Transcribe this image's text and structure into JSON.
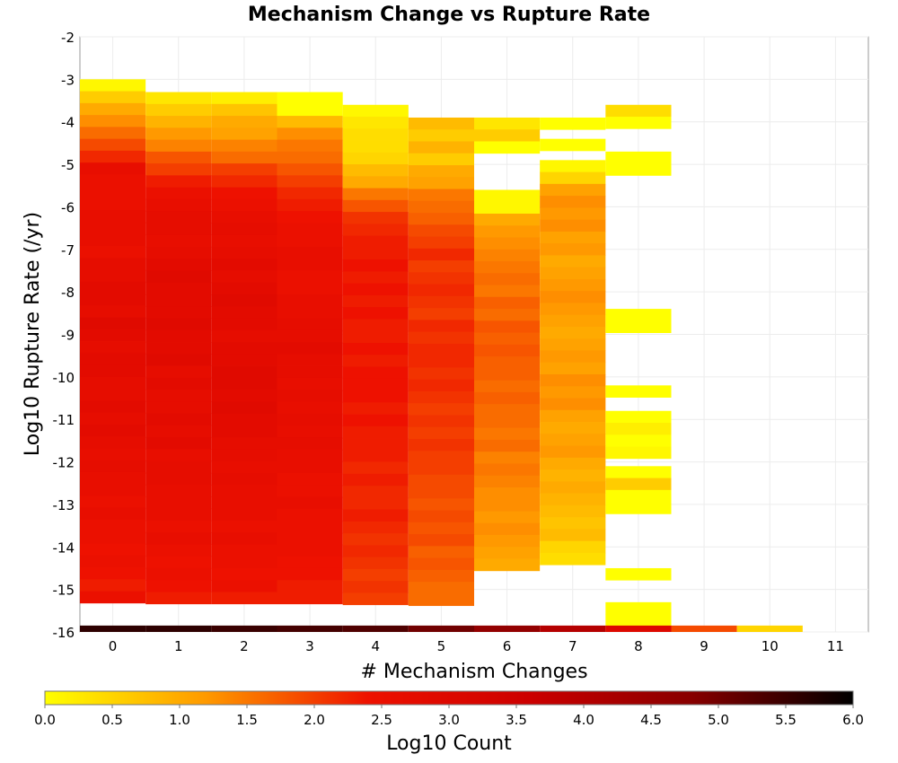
{
  "chart_data": {
    "type": "heatmap",
    "title": "Mechanism Change vs Rupture Rate",
    "xlabel": "# Mechanism Changes",
    "ylabel": "Log10 Rupture Rate (/yr)",
    "xlim": [
      -0.5,
      11.5
    ],
    "ylim": [
      -16,
      -2
    ],
    "x_ticks": [
      "0",
      "1",
      "2",
      "3",
      "4",
      "5",
      "6",
      "7",
      "8",
      "9",
      "10",
      "11"
    ],
    "y_ticks": [
      "-2",
      "-3",
      "-4",
      "-5",
      "-6",
      "-7",
      "-8",
      "-9",
      "-10",
      "-11",
      "-12",
      "-13",
      "-14",
      "-15",
      "-16"
    ],
    "grid": true,
    "bin_height": 0.28,
    "colorbar": {
      "label": "Log10 Count",
      "range": [
        0,
        6
      ],
      "ticks": [
        "0.0",
        "0.5",
        "1.0",
        "1.5",
        "2.0",
        "2.5",
        "3.0",
        "3.5",
        "4.0",
        "4.5",
        "5.0",
        "5.5",
        "6.0"
      ],
      "colors": [
        "#ffff00",
        "#ff9900",
        "#ee1100",
        "#cc0000",
        "#880000",
        "#000000"
      ]
    },
    "columns": [
      {
        "x": 0,
        "y_start": -3.0,
        "values": [
          0.1,
          0.6,
          1.0,
          1.3,
          1.6,
          1.9,
          2.2,
          2.6,
          2.5,
          2.5,
          2.5,
          2.6,
          2.6,
          2.6,
          2.5,
          2.7,
          2.7,
          2.8,
          2.8,
          2.7,
          2.9,
          2.8,
          2.7,
          2.8,
          2.8,
          2.7,
          2.7,
          2.8,
          2.7,
          2.8,
          2.7,
          2.6,
          2.7,
          2.6,
          2.6,
          2.5,
          2.6,
          2.5,
          2.5,
          2.4,
          2.5,
          2.4,
          2.3,
          2.5
        ]
      },
      {
        "x": 1,
        "y_start": -3.3,
        "values": [
          0.3,
          0.6,
          0.9,
          1.2,
          1.4,
          1.8,
          2.0,
          2.3,
          2.5,
          2.6,
          2.7,
          2.7,
          2.6,
          2.7,
          2.8,
          2.9,
          2.8,
          2.8,
          2.8,
          2.9,
          2.8,
          2.8,
          2.9,
          2.7,
          2.8,
          2.7,
          2.7,
          2.8,
          2.7,
          2.8,
          2.6,
          2.7,
          2.7,
          2.6,
          2.6,
          2.6,
          2.5,
          2.6,
          2.5,
          2.4,
          2.5,
          2.4,
          2.3
        ]
      },
      {
        "x": 2,
        "y_start": -3.3,
        "values": [
          0.2,
          0.7,
          1.0,
          1.1,
          1.4,
          1.6,
          2.0,
          2.2,
          2.4,
          2.5,
          2.6,
          2.7,
          2.6,
          2.7,
          2.8,
          2.7,
          2.8,
          2.9,
          2.8,
          2.8,
          2.7,
          2.8,
          2.8,
          2.9,
          2.9,
          2.8,
          2.9,
          2.8,
          2.8,
          2.7,
          2.7,
          2.6,
          2.7,
          2.6,
          2.6,
          2.6,
          2.5,
          2.6,
          2.5,
          2.5,
          2.4,
          2.5,
          2.3
        ]
      },
      {
        "x": 3,
        "y_start": -3.3,
        "values": [
          0.0,
          0.0,
          0.8,
          1.3,
          1.5,
          1.6,
          1.8,
          2.0,
          2.2,
          2.3,
          2.4,
          2.5,
          2.5,
          2.6,
          2.6,
          2.5,
          2.5,
          2.6,
          2.6,
          2.7,
          2.7,
          2.8,
          2.7,
          2.7,
          2.6,
          2.7,
          2.6,
          2.7,
          2.6,
          2.7,
          2.6,
          2.6,
          2.5,
          2.5,
          2.6,
          2.5,
          2.5,
          2.5,
          2.5,
          2.4,
          2.4,
          2.3,
          2.3
        ]
      },
      {
        "x": 4,
        "y_start": -3.6,
        "values": [
          0.1,
          0.3,
          0.4,
          0.4,
          0.5,
          0.8,
          1.0,
          1.5,
          1.8,
          2.1,
          2.2,
          2.3,
          2.3,
          2.4,
          2.3,
          2.4,
          2.3,
          2.4,
          2.3,
          2.3,
          2.4,
          2.3,
          2.4,
          2.4,
          2.4,
          2.3,
          2.4,
          2.3,
          2.3,
          2.3,
          2.2,
          2.3,
          2.2,
          2.2,
          2.3,
          2.2,
          2.1,
          2.2,
          2.1,
          2.0,
          2.1,
          2.0
        ]
      },
      {
        "x": 5,
        "y_start": -3.9,
        "values": [
          0.8,
          0.6,
          0.9,
          0.6,
          1.0,
          1.1,
          1.5,
          1.6,
          1.7,
          1.9,
          2.0,
          2.2,
          2.0,
          2.1,
          2.2,
          2.1,
          2.0,
          2.2,
          2.1,
          2.2,
          2.2,
          2.1,
          2.2,
          2.1,
          2.0,
          2.1,
          2.0,
          2.1,
          2.0,
          2.0,
          1.9,
          1.9,
          1.8,
          1.9,
          1.8,
          1.9,
          1.7,
          1.8,
          1.7,
          1.6,
          1.6
        ]
      },
      {
        "x": 6,
        "y_start": -5.6,
        "values": [
          0.1,
          0.1,
          1.0,
          1.2,
          1.3,
          1.4,
          1.5,
          1.6,
          1.5,
          1.7,
          1.6,
          1.8,
          1.7,
          1.8,
          1.7,
          1.7,
          1.6,
          1.7,
          1.6,
          1.6,
          1.5,
          1.6,
          1.4,
          1.5,
          1.4,
          1.3,
          1.3,
          1.2,
          1.3,
          1.2,
          1.1,
          1.0
        ]
      },
      {
        "x": 6,
        "y_start": -3.9,
        "values": [
          0.3,
          0.6,
          0.0
        ]
      },
      {
        "x": 7,
        "y_start": -4.9,
        "values": [
          0.1,
          0.5,
          1.1,
          1.3,
          1.2,
          1.3,
          1.1,
          1.2,
          1.0,
          1.1,
          1.2,
          1.3,
          1.2,
          1.1,
          1.0,
          1.1,
          1.2,
          1.1,
          1.3,
          1.2,
          1.3,
          1.1,
          1.0,
          1.1,
          1.2,
          1.0,
          0.9,
          1.0,
          0.9,
          0.8,
          0.7,
          0.8,
          0.5,
          0.4
        ]
      },
      {
        "x": 7,
        "y_start": -3.9,
        "values": [
          0.0
        ]
      },
      {
        "x": 7,
        "y_start": -4.4,
        "values": [
          0.0
        ]
      },
      {
        "x": 8,
        "y_start": -3.6,
        "values": [
          0.4,
          0.0
        ]
      },
      {
        "x": 8,
        "y_start": -4.7,
        "values": [
          0.0,
          0.0
        ]
      },
      {
        "x": 8,
        "y_start": -8.4,
        "values": [
          0.0,
          0.0
        ]
      },
      {
        "x": 8,
        "y_start": -10.2,
        "values": [
          0.0
        ]
      },
      {
        "x": 8,
        "y_start": -10.8,
        "values": [
          0.0,
          0.2,
          0.0,
          0.1
        ]
      },
      {
        "x": 8,
        "y_start": -12.1,
        "values": [
          0.0,
          0.6,
          0.0,
          0.0
        ]
      },
      {
        "x": 8,
        "y_start": -14.5,
        "values": [
          0.0
        ]
      },
      {
        "x": 8,
        "y_start": -15.3,
        "values": [
          0.0,
          0.0,
          0.0
        ]
      },
      {
        "x": 0,
        "y_start": -15.85,
        "values": [
          5.6
        ],
        "bin": 0.15
      },
      {
        "x": 1,
        "y_start": -15.85,
        "values": [
          5.6
        ],
        "bin": 0.15
      },
      {
        "x": 2,
        "y_start": -15.85,
        "values": [
          5.5
        ],
        "bin": 0.15
      },
      {
        "x": 3,
        "y_start": -15.85,
        "values": [
          5.4
        ],
        "bin": 0.15
      },
      {
        "x": 4,
        "y_start": -15.85,
        "values": [
          5.3
        ],
        "bin": 0.15
      },
      {
        "x": 5,
        "y_start": -15.85,
        "values": [
          5.0
        ],
        "bin": 0.15
      },
      {
        "x": 6,
        "y_start": -15.85,
        "values": [
          4.6
        ],
        "bin": 0.15
      },
      {
        "x": 7,
        "y_start": -15.85,
        "values": [
          4.0
        ],
        "bin": 0.15
      },
      {
        "x": 8,
        "y_start": -15.85,
        "values": [
          3.0
        ],
        "bin": 0.15
      },
      {
        "x": 9,
        "y_start": -15.85,
        "values": [
          1.9
        ],
        "bin": 0.15
      },
      {
        "x": 10,
        "y_start": -15.85,
        "values": [
          0.5
        ],
        "bin": 0.15
      }
    ]
  }
}
